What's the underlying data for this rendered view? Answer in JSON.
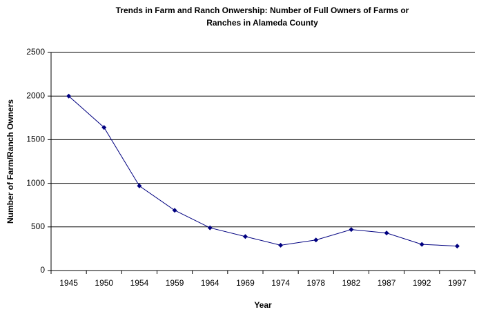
{
  "chart_data": {
    "type": "line",
    "title": "Trends in Farm and Ranch Onwership: Number of Full Owners of Farms or Ranches in Alameda County",
    "x_label": "Year",
    "y_label": "Number of Farm/Ranch Owners",
    "categories": [
      "1945",
      "1950",
      "1954",
      "1959",
      "1964",
      "1969",
      "1974",
      "1978",
      "1982",
      "1987",
      "1992",
      "1997"
    ],
    "values": [
      2000,
      1640,
      970,
      690,
      490,
      390,
      290,
      350,
      470,
      430,
      300,
      280
    ],
    "color": "#000080",
    "ylim": [
      0,
      2500
    ],
    "yticks": [
      0,
      500,
      1000,
      1500,
      2000,
      2500
    ],
    "grid": true
  }
}
